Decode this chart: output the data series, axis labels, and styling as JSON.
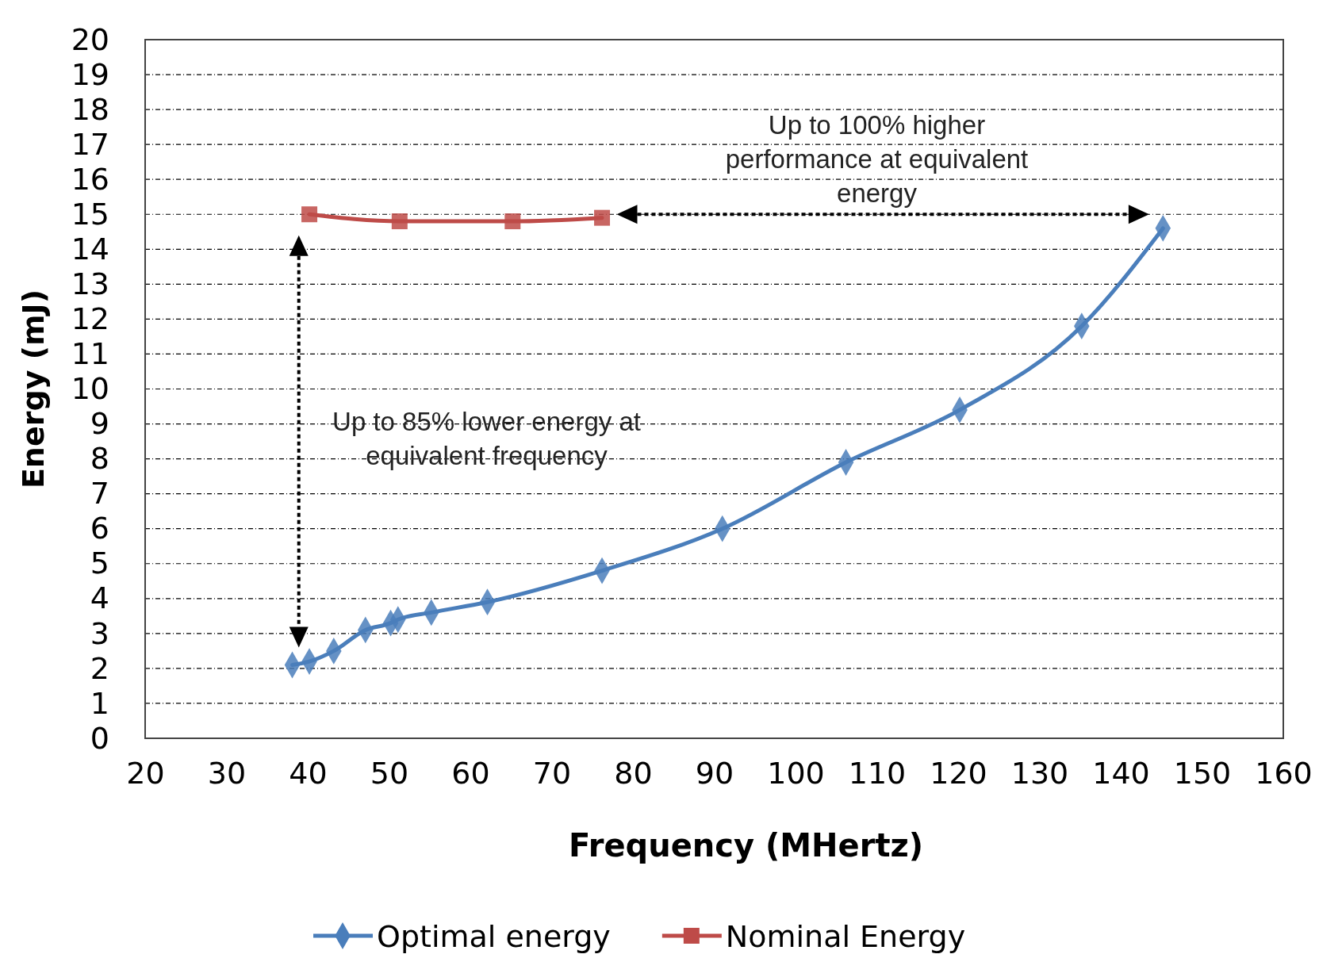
{
  "chart_data": {
    "type": "line",
    "xlabel": "Frequency (MHertz)",
    "ylabel": "Energy (mJ)",
    "xlim": [
      20,
      160
    ],
    "xticks": [
      20,
      30,
      40,
      50,
      60,
      70,
      80,
      90,
      100,
      110,
      120,
      130,
      140,
      150,
      160
    ],
    "ylim": [
      0,
      20
    ],
    "yticks": [
      0,
      1,
      2,
      3,
      4,
      5,
      6,
      7,
      8,
      9,
      10,
      11,
      12,
      13,
      14,
      15,
      16,
      17,
      18,
      19,
      20
    ],
    "grid": "y",
    "legend": "bottom",
    "series": [
      {
        "name": "Optimal energy",
        "color": "#4a7ebb",
        "marker": "diamond",
        "x": [
          38.1,
          40.2,
          43.2,
          47.1,
          50.2,
          51.1,
          55.2,
          62.1,
          76.2,
          91,
          106.2,
          120.2,
          135.2,
          145.2
        ],
        "values": [
          2.1,
          2.2,
          2.5,
          3.1,
          3.3,
          3.4,
          3.6,
          3.9,
          4.8,
          6,
          7.9,
          9.4,
          11.8,
          14.6
        ]
      },
      {
        "name": "Nominal Energy",
        "color": "#be4b48",
        "marker": "square",
        "x": [
          40.2,
          51.3,
          65.2,
          76.2
        ],
        "values": [
          15,
          14.8,
          14.8,
          14.9
        ]
      }
    ],
    "annotations": [
      "Up to 100% higher\nperformance at equivalent\nenergy",
      "Up to 85% lower energy at\nequivalent frequency"
    ]
  }
}
